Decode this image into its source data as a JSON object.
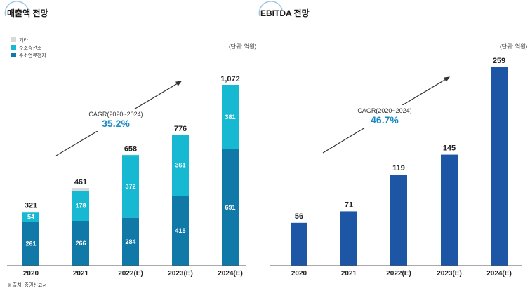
{
  "charts": {
    "left": {
      "title": "매출액 전망",
      "unit": "(단위: 억원)",
      "source": "※ 출처: 증권신고서",
      "cagr_label": "CAGR(2020~2024)",
      "cagr_value": "35.2%"
    },
    "right": {
      "title": "EBITDA 전망",
      "unit": "(단위: 억원)",
      "cagr_label": "CAGR(2020~2024)",
      "cagr_value": "46.7%"
    }
  },
  "colors": {
    "other": "#d9d9d9",
    "hydrogen_charging": "#17b9d2",
    "fuel_cell": "#1179a8",
    "ebitda": "#1c56a5",
    "cagr_text": "#1b8ac4",
    "arrow": "#333333",
    "axis": "#555555"
  },
  "chart_data": [
    {
      "type": "bar",
      "stacked": true,
      "title": "매출액 전망",
      "unit": "(단위: 억원)",
      "categories": [
        "2020",
        "2021",
        "2022(E)",
        "2023(E)",
        "2024(E)"
      ],
      "totals": [
        321,
        461,
        658,
        776,
        1072
      ],
      "series": [
        {
          "name": "수소연료전지",
          "values": [
            261,
            266,
            284,
            415,
            691
          ]
        },
        {
          "name": "수소충전소",
          "values": [
            54,
            178,
            372,
            361,
            381
          ]
        },
        {
          "name": "기타",
          "values": [
            6,
            17,
            2,
            0,
            0
          ]
        }
      ],
      "legend_position": "top-left",
      "ylim": [
        0,
        1100
      ],
      "grid": false
    },
    {
      "type": "bar",
      "title": "EBITDA 전망",
      "unit": "(단위: 억원)",
      "categories": [
        "2020",
        "2021",
        "2022(E)",
        "2023(E)",
        "2024(E)"
      ],
      "values": [
        56,
        71,
        119,
        145,
        259
      ],
      "ylim": [
        0,
        268
      ],
      "grid": false
    }
  ]
}
